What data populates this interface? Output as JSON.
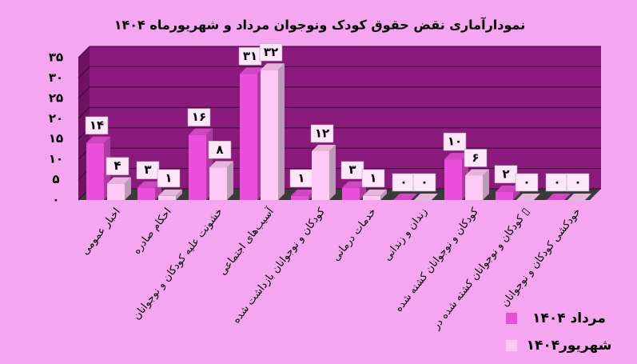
{
  "chart_data": {
    "type": "bar",
    "title": "نمودارآماری نقض حقوق کودک ونوجوان مرداد و شهریورماه ۱۴۰۴",
    "categories": [
      "اخبار عمومی",
      "احکام صادره",
      "خشونت علیه کودکان و نوجوانان",
      "آسیب‌های اجتماعی",
      "کودکان و نوجوانان بازداشت شده",
      "خدمات درمانی",
      "زندان و زندانی",
      "کودکان و نوجوانان کشته شده",
      "کودکان و نوجوانان کشته شده در ▯",
      "خودکشی کودکان و نوجوانان"
    ],
    "series": [
      {
        "name": "مرداد ۱۴۰۴",
        "color": "#e94fd8",
        "values": [
          14,
          3,
          16,
          31,
          1,
          3,
          0,
          10,
          2,
          0
        ],
        "value_labels": [
          "۱۴",
          "۳",
          "۱۶",
          "۳۱",
          "۱",
          "۳",
          "۰",
          "۱۰",
          "۲",
          "۰"
        ]
      },
      {
        "name": "شهریور۱۴۰۴",
        "color": "#ffc9f5",
        "values": [
          4,
          1,
          8,
          32,
          12,
          1,
          0,
          6,
          0,
          0
        ],
        "value_labels": [
          "۴",
          "۱",
          "۸",
          "۳۲",
          "۱۲",
          "۱",
          "۰",
          "۶",
          "۰",
          "۰"
        ]
      }
    ],
    "ylim": [
      0,
      35
    ],
    "yticks": [
      {
        "value": 0,
        "label": "۰"
      },
      {
        "value": 5,
        "label": "۵"
      },
      {
        "value": 10,
        "label": "۱۰"
      },
      {
        "value": 15,
        "label": "۱۵"
      },
      {
        "value": 20,
        "label": "۲۰"
      },
      {
        "value": 25,
        "label": "۲۵"
      },
      {
        "value": 30,
        "label": "۳۰"
      },
      {
        "value": 35,
        "label": "۳۵"
      }
    ],
    "grid": true
  }
}
